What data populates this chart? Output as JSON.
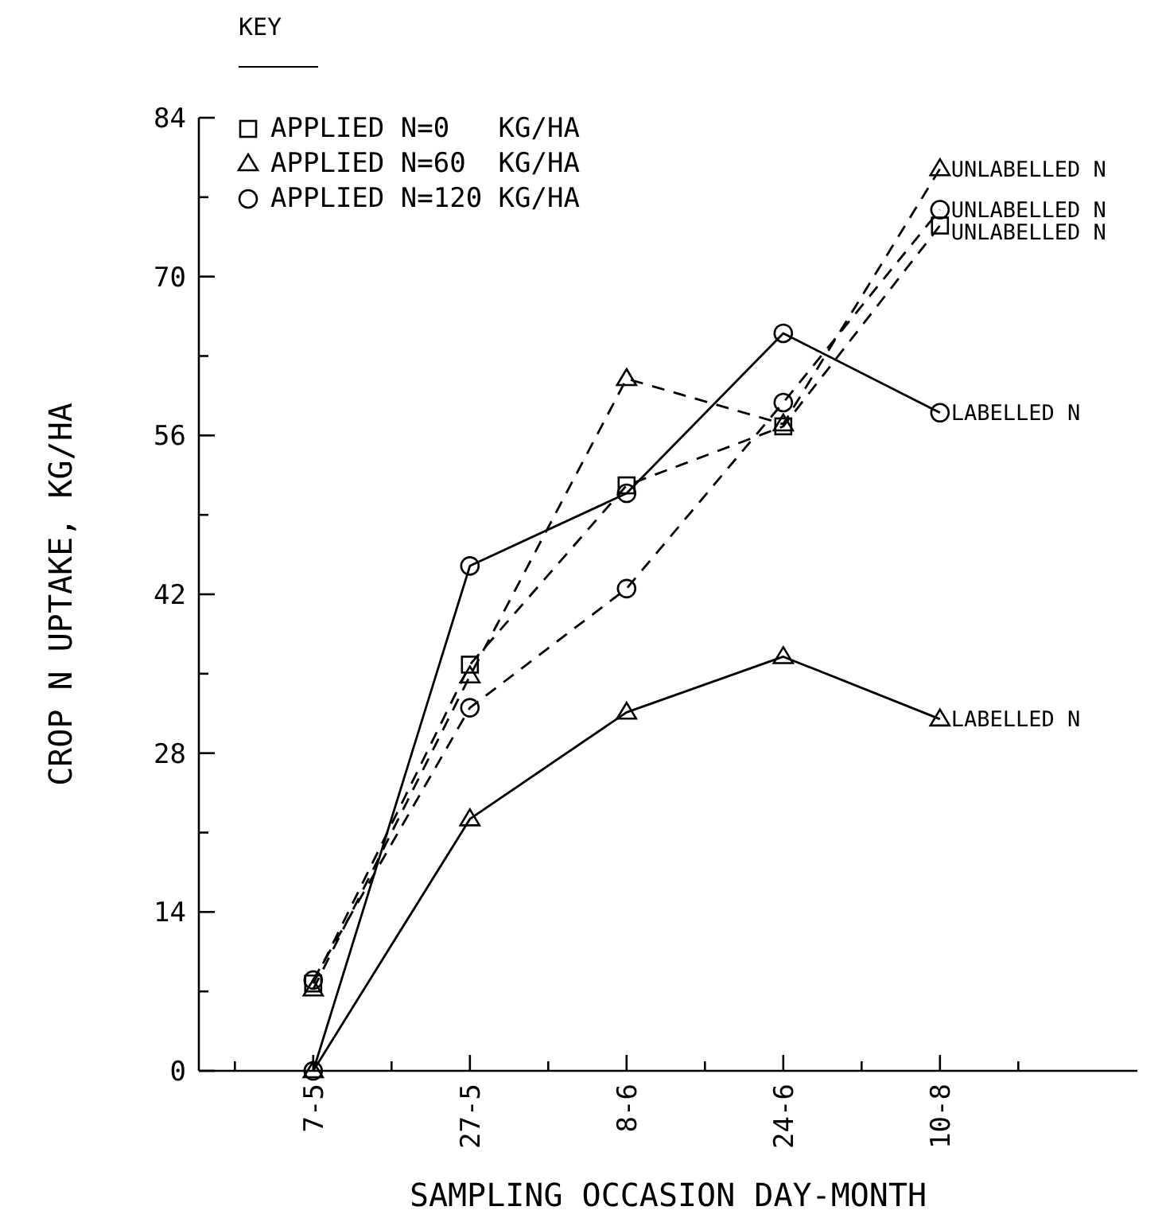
{
  "chart_data": {
    "type": "line",
    "categories": [
      "7-5",
      "27-5",
      "8-6",
      "24-6",
      "10-8"
    ],
    "xlabel": "SAMPLING OCCASION DAY-MONTH",
    "ylabel": "CROP N UPTAKE, KG/HA",
    "legend_title": "KEY",
    "legend": "top left",
    "ylim": [
      0,
      84
    ],
    "yticks": [
      0,
      14,
      28,
      42,
      56,
      70,
      84
    ],
    "grid": false,
    "series": [
      {
        "name": "APPLIED N=0   KG/HA",
        "color": "#000000",
        "marker": "square",
        "line_style": "dashed",
        "values": [
          7.7,
          35.8,
          51.6,
          56.8,
          74.5
        ]
      },
      {
        "name": "APPLIED N=60  KG/HA",
        "color": "#000000",
        "marker": "triangle",
        "line_style": "dashed",
        "values": [
          7.2,
          34.8,
          61,
          57,
          79.5
        ]
      },
      {
        "name": "APPLIED N=120 KG/HA",
        "color": "#000000",
        "marker": "circle",
        "line_style": "dashed",
        "values": [
          8,
          32,
          42.5,
          58.9,
          75.9
        ]
      },
      {
        "color": "#000000",
        "marker": "circle",
        "line_style": "solid",
        "values": [
          0,
          44.5,
          50.9,
          65,
          58
        ]
      },
      {
        "color": "#000000",
        "marker": "triangle",
        "line_style": "solid",
        "values": [
          0,
          22.2,
          31.6,
          36.5,
          31
        ]
      }
    ],
    "annotations": [
      {
        "text": "UNLABELLED N",
        "x": "10-8",
        "y": 79.5
      },
      {
        "text": "UNLABELLED N",
        "x": "10-8",
        "y": 75.9
      },
      {
        "text": "UNLABELLED N",
        "x": "10-8",
        "y": 74.5
      },
      {
        "text": "LABELLED N",
        "x": "10-8",
        "y": 58
      },
      {
        "text": "LABELLED N",
        "x": "10-8",
        "y": 31
      }
    ]
  }
}
